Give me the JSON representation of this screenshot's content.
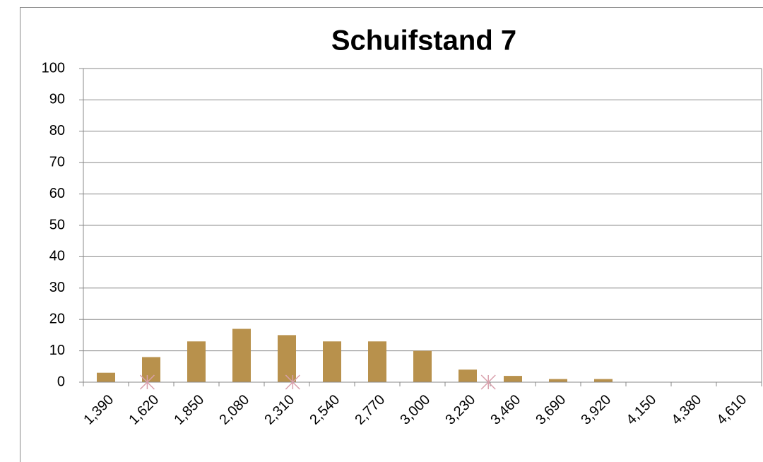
{
  "chart_data": {
    "type": "bar",
    "title": "Schuifstand 7",
    "categories": [
      "1,390",
      "1,620",
      "1,850",
      "2,080",
      "2,310",
      "2,540",
      "2,770",
      "3,000",
      "3,230",
      "3,460",
      "3,690",
      "3,920",
      "4,150",
      "4,380",
      "4,610"
    ],
    "values": [
      3,
      8,
      13,
      17,
      15,
      13,
      13,
      10,
      4,
      2,
      1,
      1,
      0,
      0,
      0
    ],
    "color": "#b8914c",
    "markers": {
      "x": [
        1600,
        2340,
        3335
      ],
      "values": [
        0,
        0,
        0
      ],
      "color": "#d9a0ac",
      "xlim": [
        1390,
        4610
      ]
    },
    "ylim": [
      0,
      100
    ],
    "yticks": [
      0,
      10,
      20,
      30,
      40,
      50,
      60,
      70,
      80,
      90,
      100
    ],
    "grid": true
  }
}
